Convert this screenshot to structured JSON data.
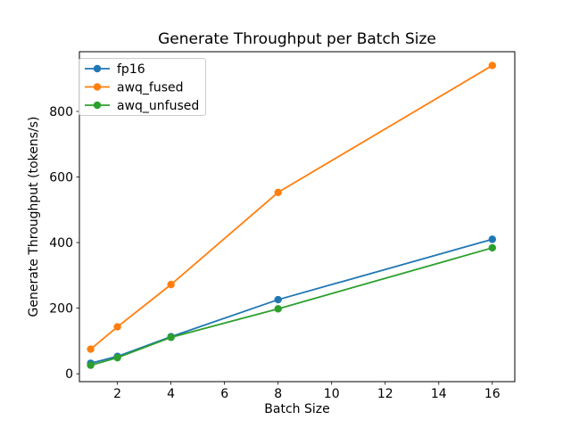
{
  "figure": {
    "title": "Generate Throughput per Batch Size",
    "xlabel": "Batch Size",
    "ylabel": "Generate Throughput (tokens/s)"
  },
  "chart_data": {
    "type": "line",
    "title": "Generate Throughput per Batch Size",
    "xlabel": "Batch Size",
    "ylabel": "Generate Throughput (tokens/s)",
    "x": [
      1,
      2,
      4,
      8,
      16
    ],
    "series": [
      {
        "name": "fp16",
        "color": "#1f77b4",
        "values": [
          32,
          53,
          113,
          226,
          410
        ]
      },
      {
        "name": "awq_fused",
        "color": "#ff7f0e",
        "values": [
          75,
          143,
          272,
          553,
          940
        ]
      },
      {
        "name": "awq_unfused",
        "color": "#2ca02c",
        "values": [
          26,
          49,
          111,
          198,
          384
        ]
      }
    ],
    "x_ticks": [
      2,
      4,
      6,
      8,
      10,
      12,
      14,
      16
    ],
    "y_ticks": [
      0,
      200,
      400,
      600,
      800
    ],
    "xlim": [
      0.58,
      16.84
    ],
    "ylim": [
      -24,
      982
    ],
    "grid": false,
    "legend": {
      "position": "upper left",
      "entries": [
        "fp16",
        "awq_fused",
        "awq_unfused"
      ]
    },
    "colors": {
      "axes": "#000000",
      "background": "#ffffff",
      "legend_border": "#cccccc"
    },
    "marker": "o",
    "line_width": 1.8,
    "marker_radius": 4.2
  }
}
